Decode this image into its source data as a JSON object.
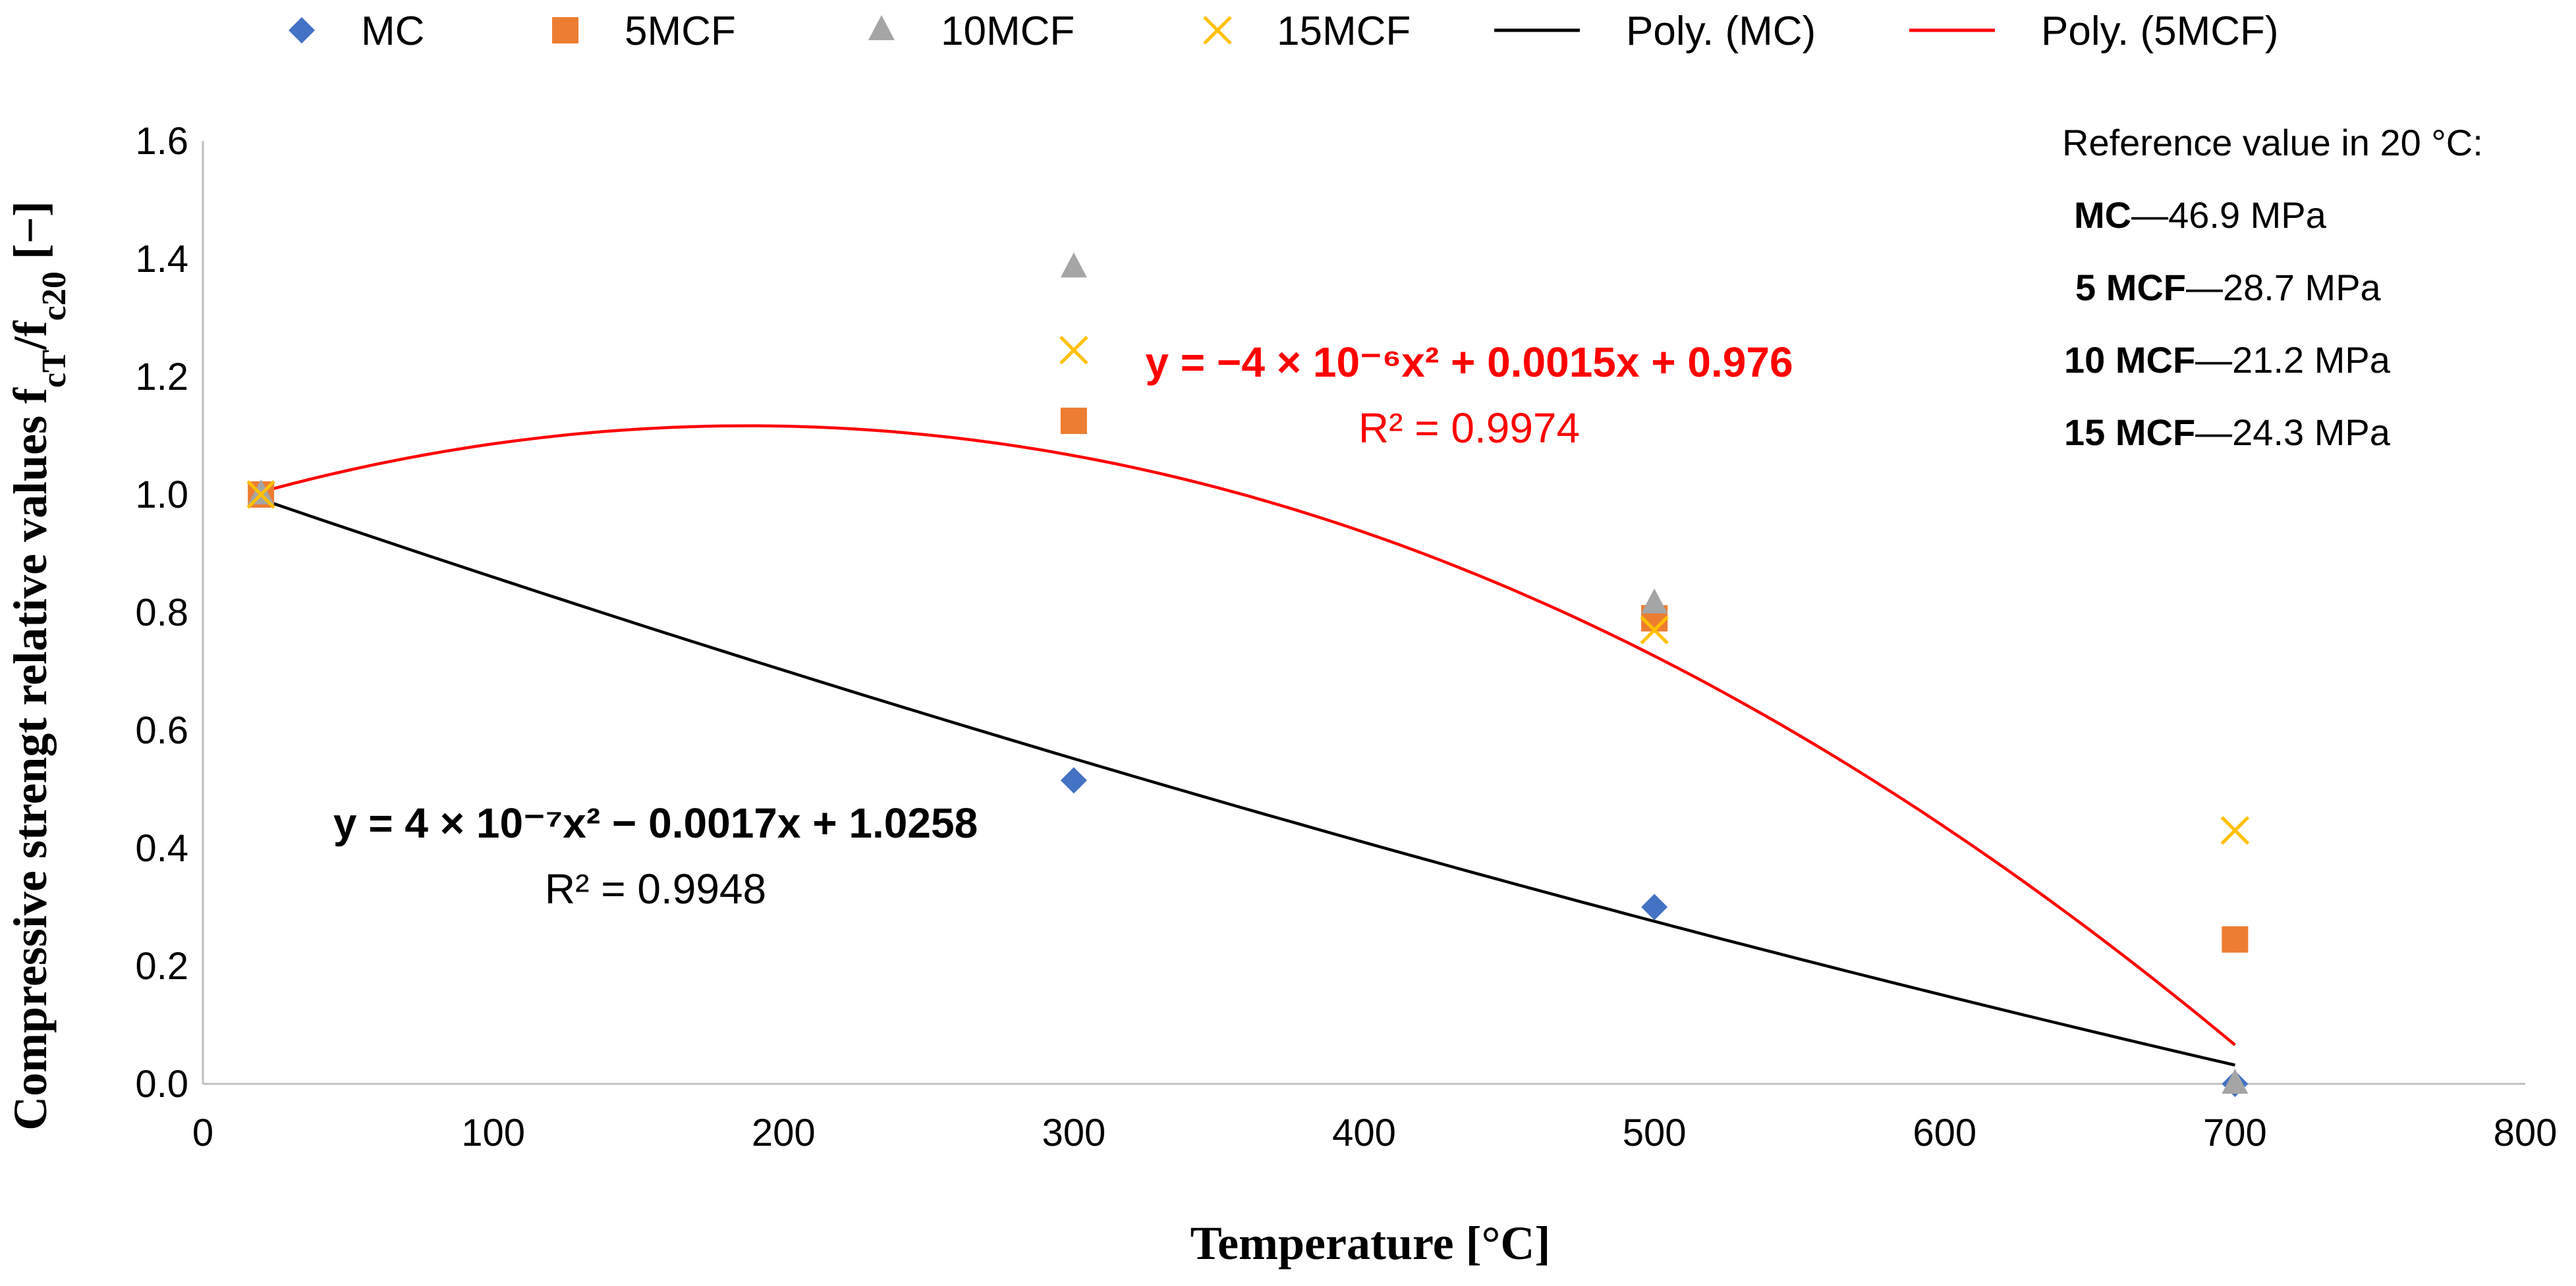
{
  "chart_data": {
    "type": "scatter",
    "xlabel": "Temperature [°C]",
    "ylabel": "Compressive strengt relative values f",
    "ylabel_sub1": "cT",
    "ylabel_mid": "/f",
    "ylabel_sub2": "c20",
    "ylabel_end": " [−]",
    "xlim": [
      0,
      800
    ],
    "ylim": [
      0,
      1.6
    ],
    "xticks": [
      "0",
      "100",
      "200",
      "300",
      "400",
      "500",
      "600",
      "700",
      "800"
    ],
    "yticks": [
      "0.0",
      "0.2",
      "0.4",
      "0.6",
      "0.8",
      "1.0",
      "1.2",
      "1.4",
      "1.6"
    ],
    "grid": false,
    "legend_position": "top",
    "series": [
      {
        "name": "MC",
        "marker": "diamond",
        "color": "#4472C4",
        "x": [
          20,
          300,
          500,
          700
        ],
        "y": [
          1.0,
          0.515,
          0.3,
          0.0
        ]
      },
      {
        "name": "5MCF",
        "marker": "square",
        "color": "#ED7D31",
        "x": [
          20,
          300,
          500,
          700
        ],
        "y": [
          1.0,
          1.125,
          0.79,
          0.245
        ]
      },
      {
        "name": "10MCF",
        "marker": "triangle",
        "color": "#A5A5A5",
        "x": [
          20,
          300,
          500,
          700
        ],
        "y": [
          1.0,
          1.385,
          0.815,
          0.0
        ]
      },
      {
        "name": "15MCF",
        "marker": "x",
        "color": "#FFC000",
        "x": [
          20,
          300,
          500,
          700
        ],
        "y": [
          1.0,
          1.245,
          0.77,
          0.43
        ]
      }
    ],
    "trendlines": [
      {
        "name": "Poly. (MC)",
        "color": "#000000",
        "coeffs": [
          4e-07,
          -0.0017,
          1.0258
        ],
        "x_range": [
          20,
          700
        ]
      },
      {
        "name": "Poly. (5MCF)",
        "color": "#FF0000",
        "coeffs": [
          -4e-06,
          0.0015,
          0.976
        ],
        "x_range": [
          20,
          700
        ]
      }
    ],
    "annotations": {
      "eq_5mcf": "y = −4 × 10⁻⁶x² + 0.0015x + 0.976",
      "r2_5mcf": "R² = 0.9974",
      "eq_mc": "y = 4 × 10⁻⁷x² − 0.0017x + 1.0258",
      "r2_mc": "R² = 0.9948",
      "reference_title": "Reference value in 20 °C:",
      "reference_values": [
        {
          "label": "MC",
          "value": "46.9 MPa"
        },
        {
          "label": "5 MCF",
          "value": "28.7 MPa"
        },
        {
          "label": "10 MCF",
          "value": "21.2 MPa"
        },
        {
          "label": "15 MCF",
          "value": "24.3 MPa"
        }
      ]
    }
  }
}
